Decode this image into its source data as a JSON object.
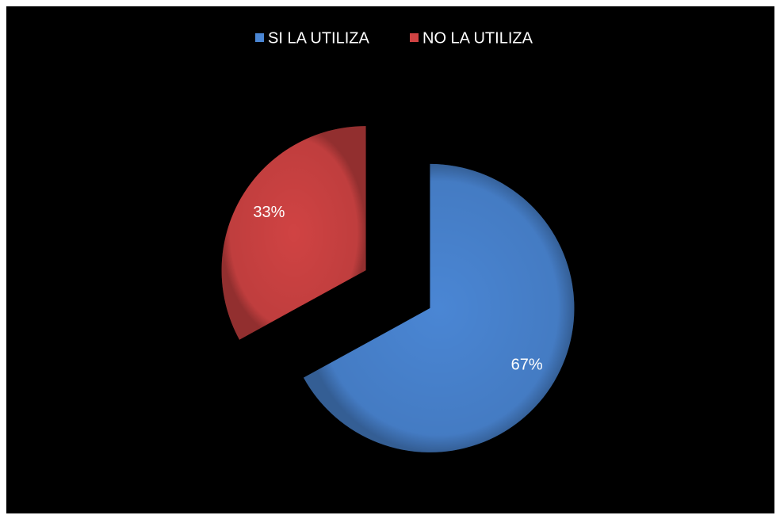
{
  "chart_data": {
    "type": "pie",
    "categories": [
      "SI LA UTILIZA",
      "NO LA UTILIZA"
    ],
    "values": [
      67,
      33
    ],
    "value_labels": [
      "67%",
      "33%"
    ],
    "colors": [
      "#4a86d4",
      "#d04343"
    ],
    "legend": "top"
  }
}
